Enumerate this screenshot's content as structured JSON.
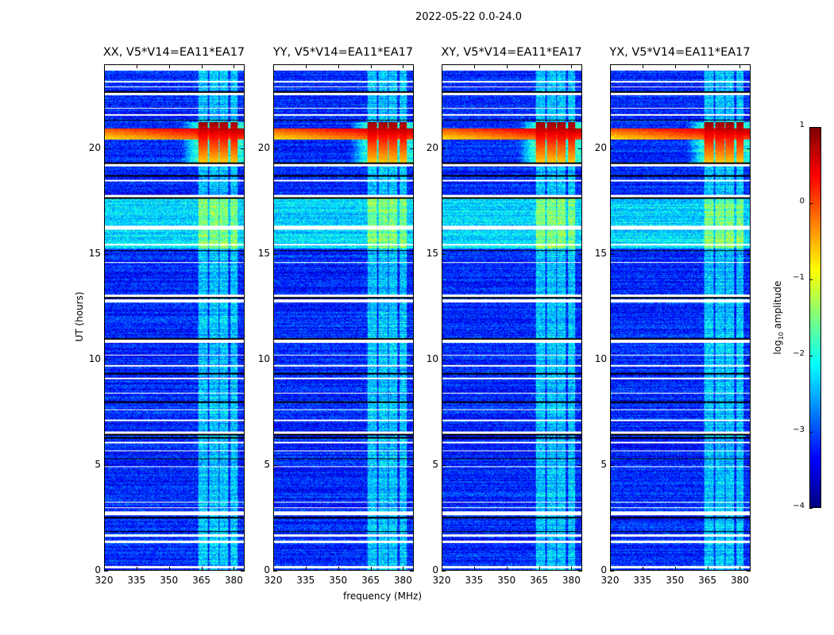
{
  "title": "2022-05-22 0.0-24.0",
  "chart_data": {
    "type": "heatmap",
    "title": "2022-05-22 0.0-24.0",
    "xlabel": "frequency (MHz)",
    "ylabel": "UT (hours)",
    "xlim": [
      320,
      385
    ],
    "ylim": [
      0,
      24
    ],
    "xticks": [
      "320",
      "335",
      "350",
      "365",
      "380"
    ],
    "xtick_values": [
      320,
      335,
      350,
      365,
      380
    ],
    "yticks": [
      "0",
      "5",
      "10",
      "15",
      "20"
    ],
    "ytick_values": [
      0,
      5,
      10,
      15,
      20
    ],
    "panels": [
      {
        "title": "XX, V5*V14=EA11*EA17"
      },
      {
        "title": "YY, V5*V14=EA11*EA17"
      },
      {
        "title": "XY, V5*V14=EA11*EA17"
      },
      {
        "title": "YX, V5*V14=EA11*EA17"
      }
    ],
    "colorbar": {
      "label_main": "log",
      "label_sub": "10",
      "label_rest": " amplitude",
      "range": [
        -4,
        1
      ],
      "ticks": [
        "1",
        "0",
        "−1",
        "−2",
        "−3",
        "−4"
      ],
      "tick_values": [
        1,
        0,
        -1,
        -2,
        -3,
        -4
      ],
      "colormap": "jet"
    },
    "background_log_amplitude": -3.2,
    "rfi_channels_mhz": [
      [
        363.5,
        368
      ],
      [
        368.5,
        373
      ],
      [
        373.5,
        377.5
      ],
      [
        378.5,
        382
      ]
    ],
    "strong_event_hours": [
      19.3,
      21.3
    ],
    "broadband_event_hours": [
      20.5,
      21.0
    ],
    "elevated_period_hours": [
      15.3,
      17.8
    ],
    "flagged_hours": [
      [
        23.75,
        24
      ],
      [
        23.2,
        23.25
      ],
      [
        22.95,
        23.0
      ],
      [
        22.6,
        22.7
      ],
      [
        21.95,
        22.0
      ],
      [
        21.6,
        21.7
      ],
      [
        19.2,
        19.3
      ],
      [
        18.5,
        18.55
      ],
      [
        17.75,
        17.85
      ],
      [
        16.2,
        16.4
      ],
      [
        15.45,
        15.5
      ],
      [
        14.6,
        14.65
      ],
      [
        13.0,
        13.1
      ],
      [
        12.75,
        12.9
      ],
      [
        10.8,
        10.95
      ],
      [
        10.2,
        10.25
      ],
      [
        9.7,
        9.75
      ],
      [
        9.1,
        9.15
      ],
      [
        8.4,
        8.45
      ],
      [
        7.6,
        7.65
      ],
      [
        7.1,
        7.15
      ],
      [
        6.5,
        6.6
      ],
      [
        6.05,
        6.1
      ],
      [
        5.65,
        5.7
      ],
      [
        4.9,
        4.95
      ],
      [
        3.2,
        3.25
      ],
      [
        2.95,
        3.0
      ],
      [
        2.6,
        2.8
      ],
      [
        1.6,
        1.7
      ],
      [
        1.3,
        1.4
      ],
      [
        0.1,
        0.2
      ]
    ],
    "scan_gaps_hours": [
      23.9,
      22.75,
      21.4,
      19.35,
      18.75,
      17.7,
      15.2,
      12.95,
      11.0,
      9.35,
      8.0,
      6.45,
      6.3,
      5.3,
      2.5,
      1.85
    ]
  }
}
